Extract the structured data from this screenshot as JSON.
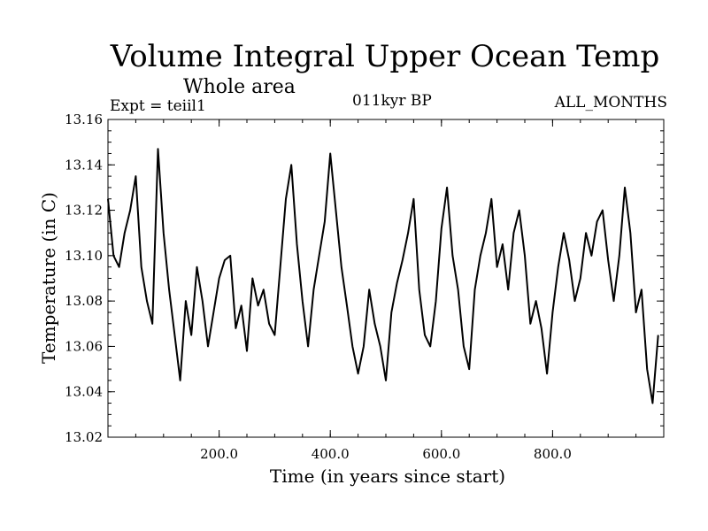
{
  "header": {
    "title": "Volume Integral Upper Ocean Temp",
    "subtitle": "Whole area",
    "experiment": "Expt = teiil1",
    "period": "011kyr BP",
    "months": "ALL_MONTHS"
  },
  "chart_data": {
    "type": "line",
    "title": "Volume Integral Upper Ocean Temp",
    "xlabel": "Time (in years since start)",
    "ylabel": "Temperature (in C)",
    "xlim": [
      0,
      1000
    ],
    "ylim": [
      13.02,
      13.16
    ],
    "xticks": [
      200,
      400,
      600,
      800
    ],
    "xtick_labels": [
      "200.0",
      "400.0",
      "600.0",
      "800.0"
    ],
    "yticks": [
      13.02,
      13.04,
      13.06,
      13.08,
      13.1,
      13.12,
      13.14,
      13.16
    ],
    "ytick_labels": [
      "13.02",
      "13.04",
      "13.06",
      "13.08",
      "13.10",
      "13.12",
      "13.14",
      "13.16"
    ],
    "grid": false,
    "series": [
      {
        "name": "Volume Integral Upper Ocean Temp",
        "x": [
          0,
          10,
          20,
          30,
          40,
          50,
          60,
          70,
          80,
          90,
          100,
          110,
          120,
          130,
          140,
          150,
          160,
          170,
          180,
          190,
          200,
          210,
          220,
          230,
          240,
          250,
          260,
          270,
          280,
          290,
          300,
          310,
          320,
          330,
          340,
          350,
          360,
          370,
          380,
          390,
          400,
          410,
          420,
          430,
          440,
          450,
          460,
          470,
          480,
          490,
          500,
          510,
          520,
          530,
          540,
          550,
          560,
          570,
          580,
          590,
          600,
          610,
          620,
          630,
          640,
          650,
          660,
          670,
          680,
          690,
          700,
          710,
          720,
          730,
          740,
          750,
          760,
          770,
          780,
          790,
          800,
          810,
          820,
          830,
          840,
          850,
          860,
          870,
          880,
          890,
          900,
          910,
          920,
          930,
          940,
          950,
          960,
          970,
          980,
          990
        ],
        "values": [
          13.125,
          13.1,
          13.095,
          13.11,
          13.12,
          13.135,
          13.095,
          13.08,
          13.07,
          13.147,
          13.11,
          13.085,
          13.065,
          13.045,
          13.08,
          13.065,
          13.095,
          13.08,
          13.06,
          13.075,
          13.09,
          13.098,
          13.1,
          13.068,
          13.078,
          13.058,
          13.09,
          13.078,
          13.085,
          13.07,
          13.065,
          13.095,
          13.125,
          13.14,
          13.105,
          13.08,
          13.06,
          13.085,
          13.1,
          13.115,
          13.145,
          13.12,
          13.095,
          13.078,
          13.06,
          13.048,
          13.06,
          13.085,
          13.07,
          13.06,
          13.045,
          13.075,
          13.088,
          13.098,
          13.11,
          13.125,
          13.085,
          13.065,
          13.06,
          13.08,
          13.112,
          13.13,
          13.1,
          13.085,
          13.06,
          13.05,
          13.085,
          13.1,
          13.11,
          13.125,
          13.095,
          13.105,
          13.085,
          13.11,
          13.12,
          13.1,
          13.07,
          13.08,
          13.068,
          13.048,
          13.075,
          13.095,
          13.11,
          13.098,
          13.08,
          13.09,
          13.11,
          13.1,
          13.115,
          13.12,
          13.098,
          13.08,
          13.1,
          13.13,
          13.11,
          13.075,
          13.085,
          13.05,
          13.035,
          13.065
        ]
      }
    ]
  }
}
